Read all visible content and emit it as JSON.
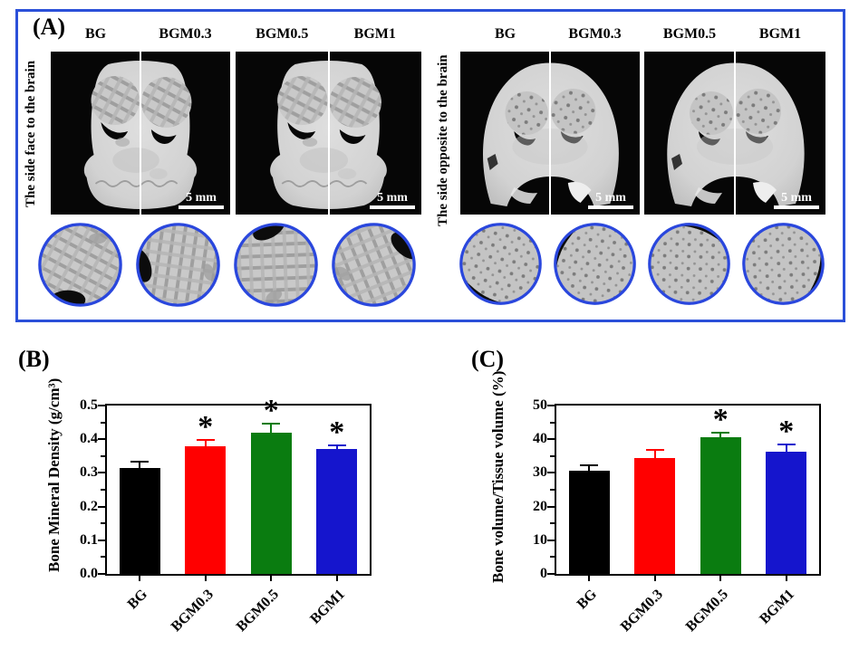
{
  "figure": {
    "panel_a": {
      "label": "(A)",
      "groups": [
        {
          "side_label": "The side face to the brain",
          "pairs": [
            {
              "left_label": "BG",
              "right_label": "BGM0.3",
              "scale_bar_label": "5 mm"
            },
            {
              "left_label": "BGM0.5",
              "right_label": "BGM1",
              "scale_bar_label": "5 mm"
            }
          ]
        },
        {
          "side_label": "The side opposite to the brain",
          "pairs": [
            {
              "left_label": "BG",
              "right_label": "BGM0.3",
              "scale_bar_label": "5 mm"
            },
            {
              "left_label": "BGM0.5",
              "right_label": "BGM1",
              "scale_bar_label": "5 mm"
            }
          ]
        }
      ]
    },
    "panel_b_label": "(B)",
    "panel_c_label": "(C)"
  },
  "chart_data": [
    {
      "id": "bmd",
      "panel": "B",
      "type": "bar",
      "title": "",
      "ylabel": "Bone Mineral Density (g/cm³)",
      "xlabel": "",
      "categories": [
        "BG",
        "BGM0.3",
        "BGM0.5",
        "BGM1"
      ],
      "values": [
        0.315,
        0.38,
        0.42,
        0.37
      ],
      "errors": [
        0.02,
        0.02,
        0.03,
        0.015
      ],
      "significance": [
        "",
        "*",
        "*",
        "*"
      ],
      "bar_colors": [
        "#000000",
        "#ff0000",
        "#0a7c10",
        "#1515cd"
      ],
      "ylim": [
        0,
        0.5
      ],
      "yticks": [
        "0.0",
        "0.1",
        "0.2",
        "0.3",
        "0.4",
        "0.5"
      ],
      "minor_ticks": true,
      "grid": false,
      "legend": "none"
    },
    {
      "id": "bvtv",
      "panel": "C",
      "type": "bar",
      "title": "",
      "ylabel": "Bone volume/Tissue volume (%)",
      "xlabel": "",
      "categories": [
        "BG",
        "BGM0.3",
        "BGM0.5",
        "BGM1"
      ],
      "values": [
        30.7,
        34.5,
        40.7,
        36.3
      ],
      "errors": [
        1.8,
        2.6,
        1.6,
        2.3
      ],
      "significance": [
        "",
        "",
        "*",
        "*"
      ],
      "bar_colors": [
        "#000000",
        "#ff0000",
        "#0a7c10",
        "#1515cd"
      ],
      "ylim": [
        0,
        50
      ],
      "yticks": [
        "0",
        "10",
        "20",
        "30",
        "40",
        "50"
      ],
      "minor_ticks": true,
      "grid": false,
      "legend": "none"
    }
  ],
  "colors": {
    "panel_border_blue": "#2b50d9",
    "inset_ring_blue": "#2a47dd",
    "image_background": "#060606",
    "bone_gray": "#d2d2d2"
  }
}
